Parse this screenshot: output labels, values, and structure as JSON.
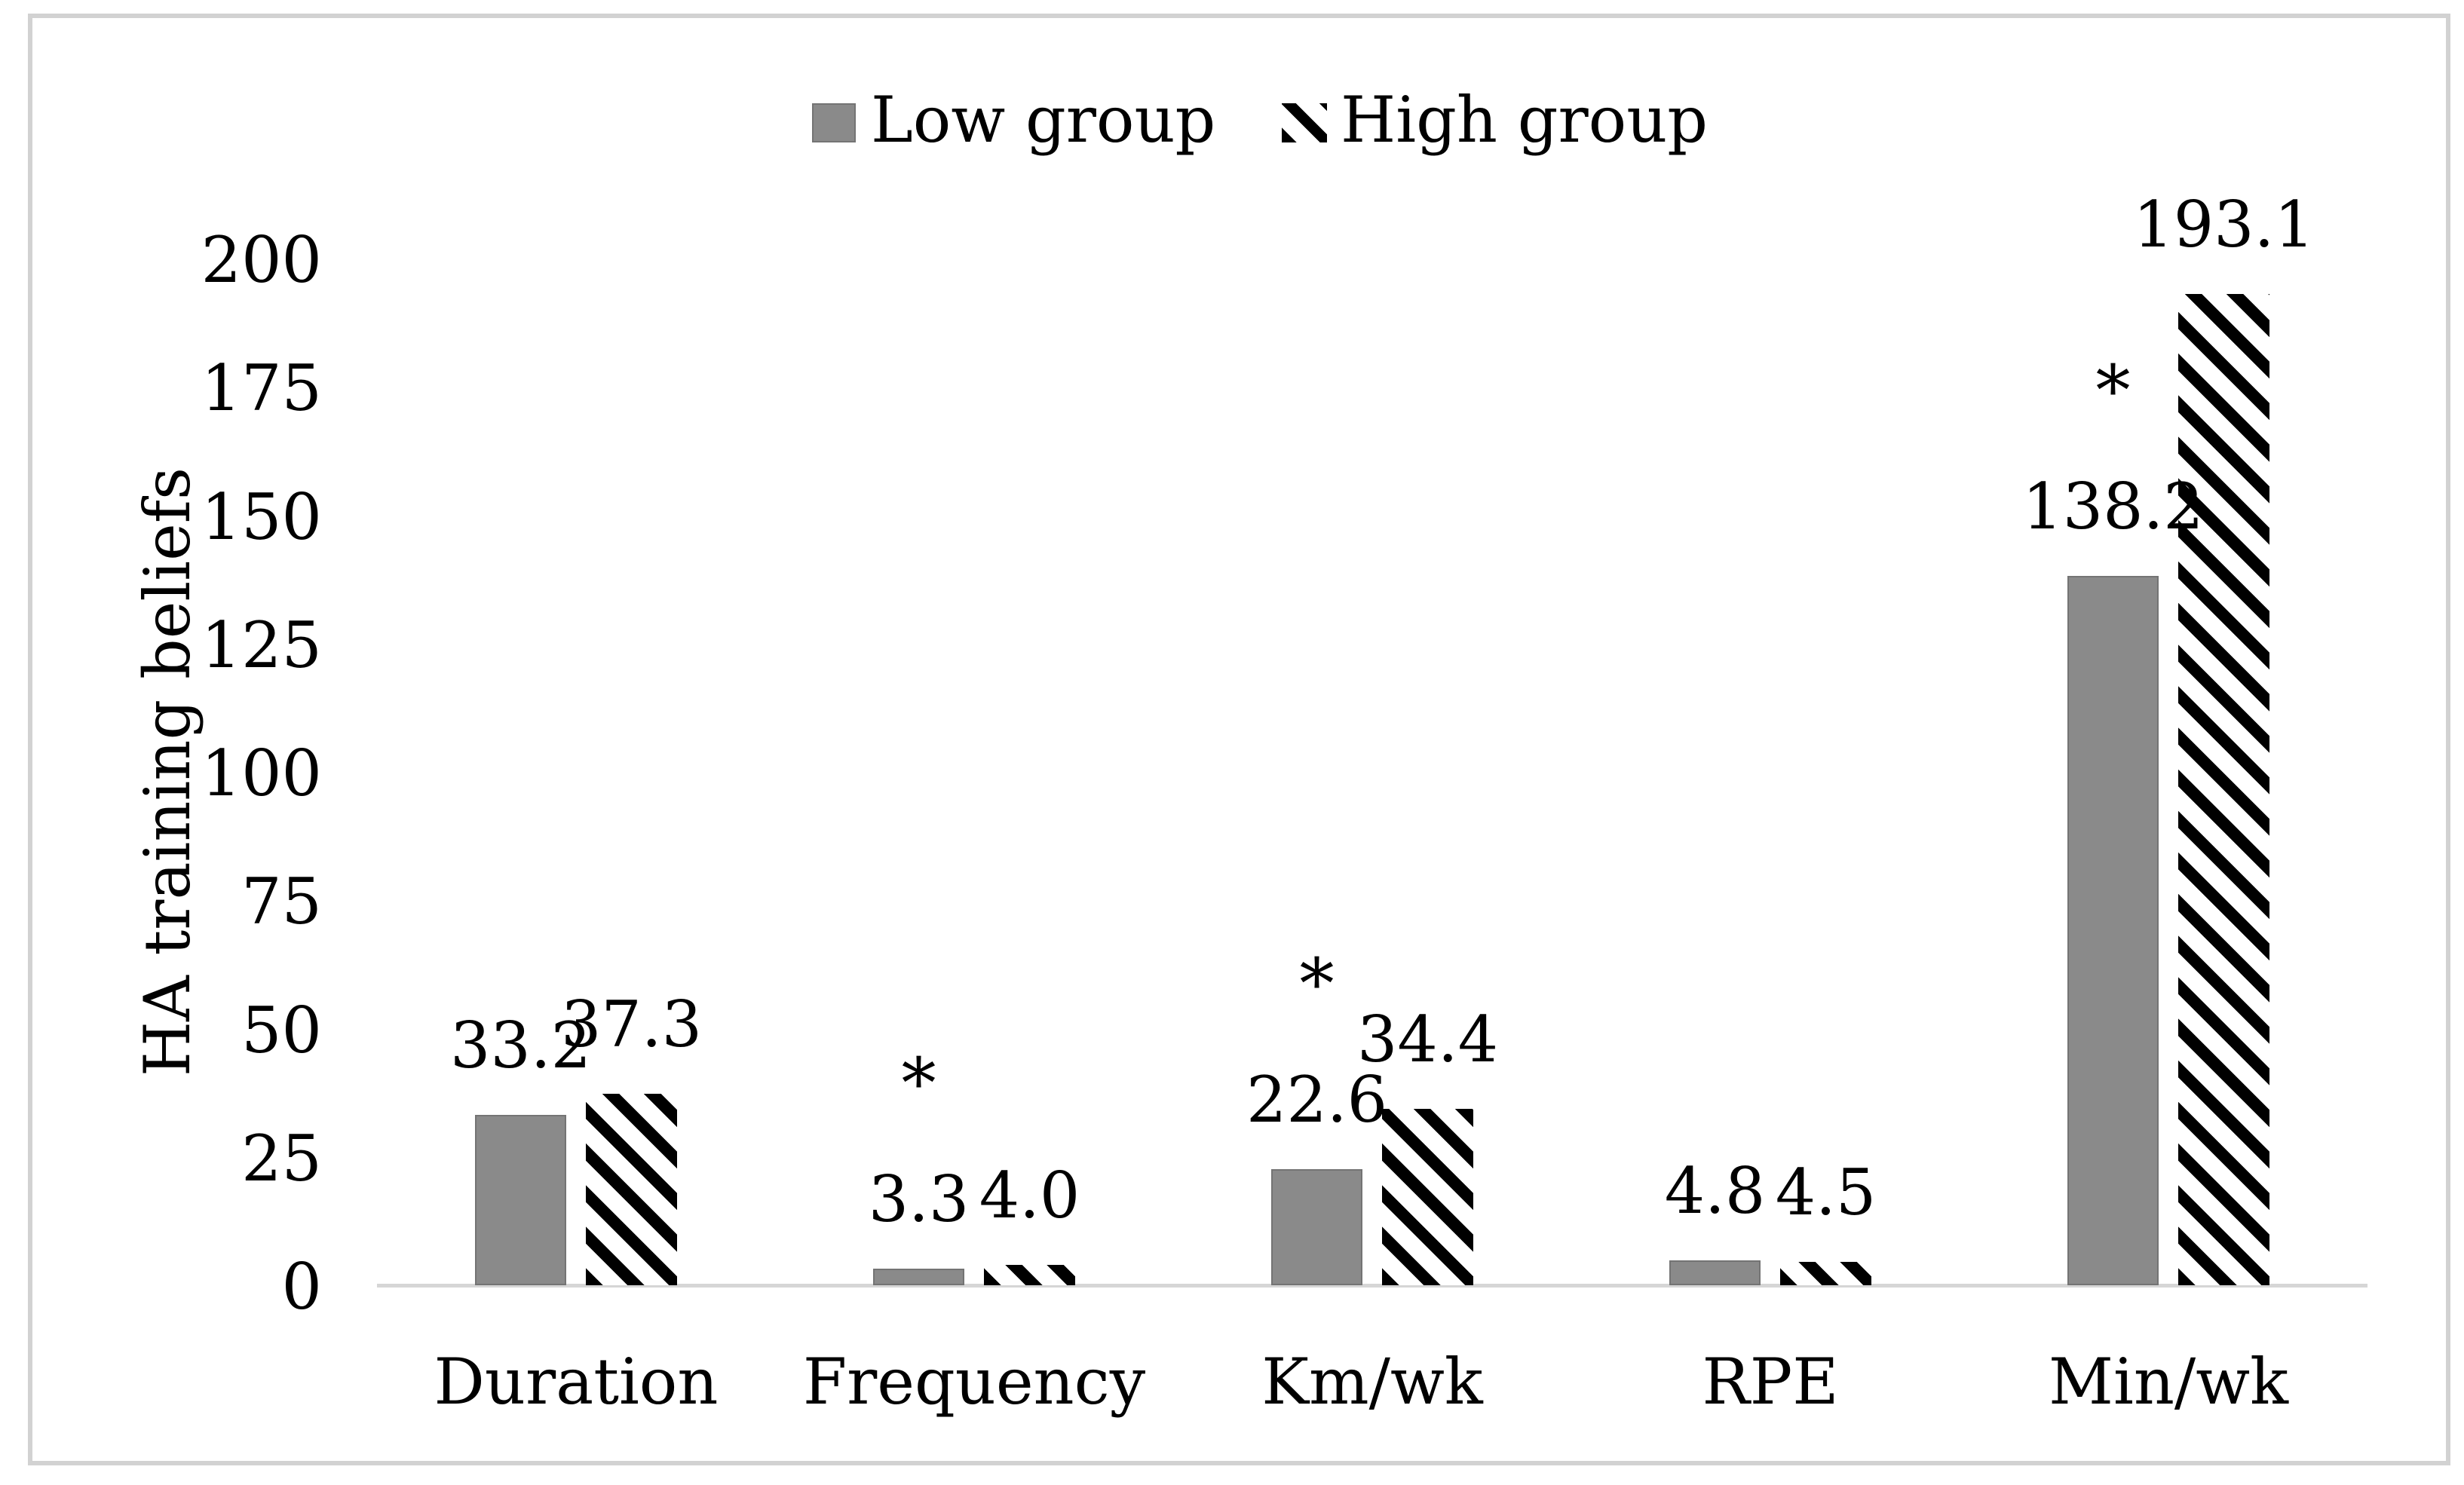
{
  "figure": {
    "background_color": "#ffffff",
    "border_color": "#d2d2d2",
    "axis_line_color": "#d6d6d6",
    "text_color": "#000000"
  },
  "chart_data": {
    "type": "bar",
    "title": "",
    "categories": [
      "Duration",
      "Frequency",
      "Km/wk",
      "RPE",
      "Min/wk"
    ],
    "series": [
      {
        "name": "Low group",
        "swatch": "solid-gray",
        "fill_color": "#8a8a8a",
        "values": [
          33.2,
          3.3,
          22.6,
          4.8,
          138.2
        ],
        "labels": [
          "33.2",
          "3.3",
          "22.6",
          "4.8",
          "138.2"
        ]
      },
      {
        "name": "High group",
        "swatch": "diagonal-stripes",
        "fill_color": "black diagonal stripes on white",
        "values": [
          37.3,
          4.0,
          34.4,
          4.5,
          193.1
        ],
        "labels": [
          "37.3",
          "4.0",
          "34.4",
          "4.5",
          "193.1"
        ]
      }
    ],
    "significance": {
      "marker": "*",
      "categories": [
        "Frequency",
        "Km/wk",
        "Min/wk"
      ],
      "position": "above the Low group bar"
    },
    "data_labels_shown": true,
    "xlabel": "",
    "ylabel": "HA training beliefs",
    "ylim": [
      0,
      200
    ],
    "yticks": [
      0,
      25,
      50,
      75,
      100,
      125,
      150,
      175,
      200
    ],
    "grid": false,
    "legend_position": "top-center"
  }
}
